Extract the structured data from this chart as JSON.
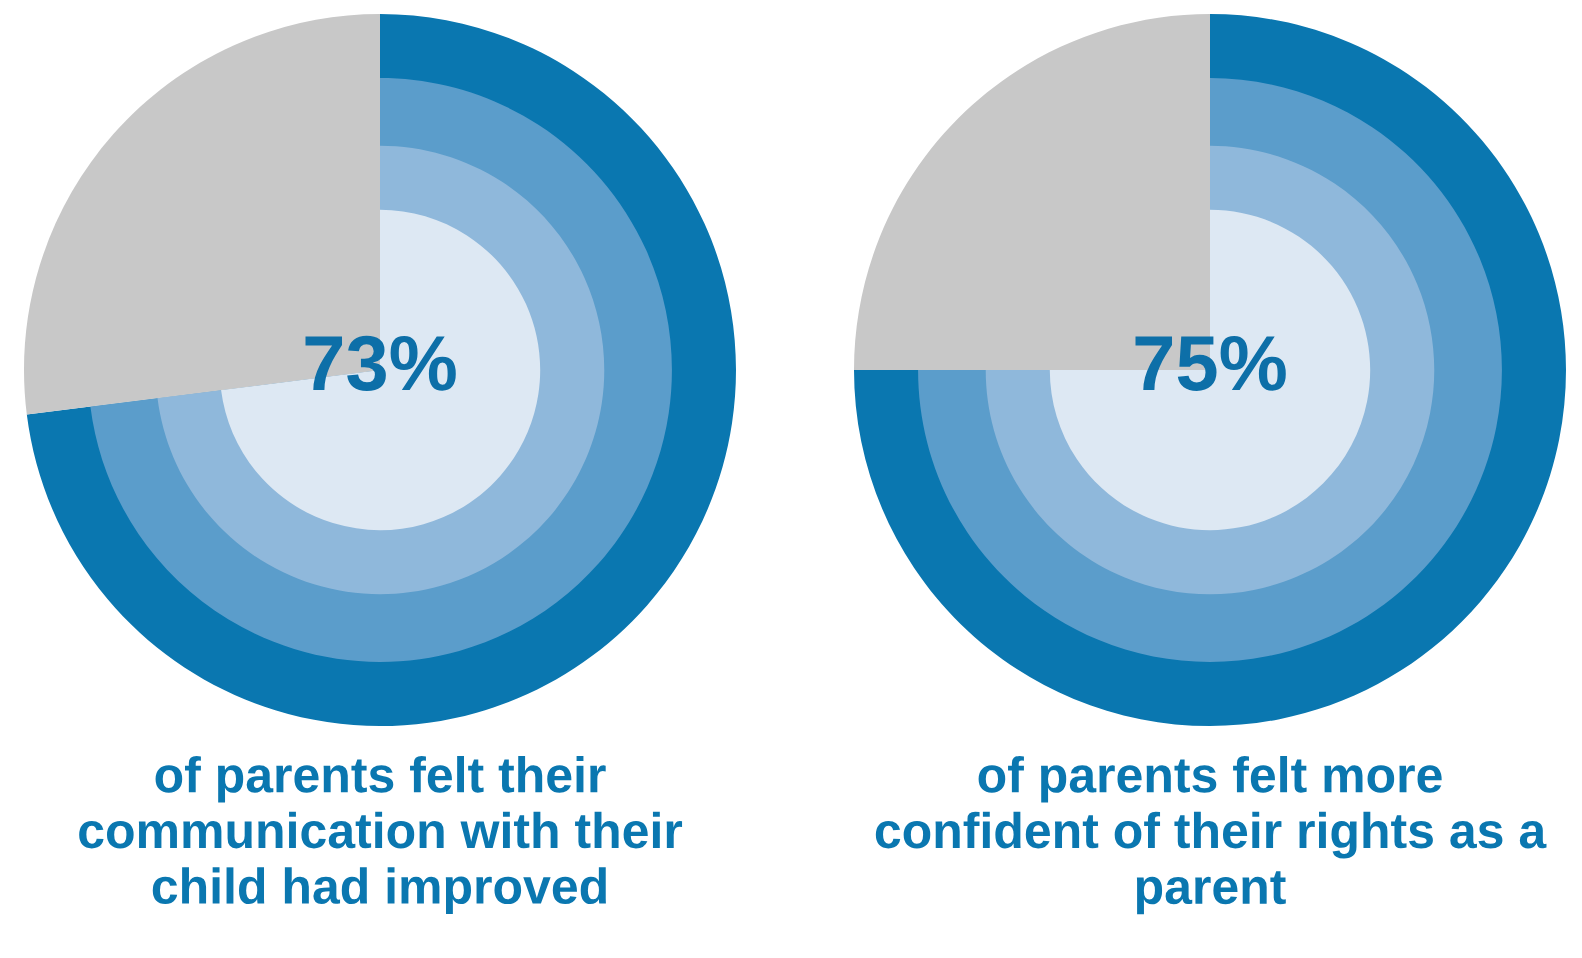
{
  "chart_data": [
    {
      "type": "donut",
      "categories": [
        null,
        null
      ],
      "values": [
        73,
        27
      ],
      "colors": [
        "#0a77b0",
        "#c8c8c8"
      ],
      "value_labels": [
        "73%",
        null
      ],
      "annotations": [
        "of parents felt their\ncommunication with their\nchild had improved"
      ]
    },
    {
      "type": "donut",
      "categories": [
        null,
        null
      ],
      "values": [
        75,
        25
      ],
      "colors": [
        "#0a77b0",
        "#c8c8c8"
      ],
      "value_labels": [
        "75%",
        null
      ],
      "annotations": [
        "of parents felt more\nconfident of their rights as a\nparent"
      ]
    }
  ]
}
